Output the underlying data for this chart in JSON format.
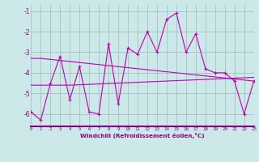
{
  "xlabel": "Windchill (Refroidissement éolien,°C)",
  "bg_color": "#cde8e8",
  "grid_color": "#99bbbb",
  "line_color": "#bb00aa",
  "x_ticks": [
    0,
    1,
    2,
    3,
    4,
    5,
    6,
    7,
    8,
    9,
    10,
    11,
    12,
    13,
    14,
    15,
    16,
    17,
    18,
    19,
    20,
    21,
    22,
    23
  ],
  "y_ticks": [
    -6,
    -5,
    -4,
    -3,
    -2,
    -1
  ],
  "xlim": [
    0,
    23
  ],
  "ylim": [
    -6.6,
    -0.7
  ],
  "series1_x": [
    0,
    1,
    2,
    3,
    4,
    5,
    6,
    7,
    8,
    9,
    10,
    11,
    12,
    13,
    14,
    15,
    16,
    17,
    18,
    19,
    20,
    21,
    22,
    23
  ],
  "series1_y": [
    -5.9,
    -6.3,
    -4.5,
    -3.2,
    -5.3,
    -3.7,
    -5.9,
    -6.0,
    -2.6,
    -5.5,
    -2.8,
    -3.1,
    -2.0,
    -3.0,
    -1.4,
    -1.1,
    -3.0,
    -2.1,
    -3.8,
    -4.0,
    -4.0,
    -4.4,
    -6.0,
    -4.4
  ],
  "series2_x": [
    0,
    1,
    2,
    3,
    4,
    5,
    6,
    7,
    8,
    9,
    10,
    11,
    12,
    13,
    14,
    15,
    16,
    17,
    18,
    19,
    20,
    21,
    22,
    23
  ],
  "series2_y": [
    -3.3,
    -3.3,
    -3.35,
    -3.4,
    -3.45,
    -3.5,
    -3.55,
    -3.6,
    -3.65,
    -3.7,
    -3.75,
    -3.8,
    -3.85,
    -3.9,
    -3.95,
    -4.0,
    -4.05,
    -4.1,
    -4.15,
    -4.2,
    -4.25,
    -4.3,
    -4.35,
    -4.4
  ],
  "series3_x": [
    0,
    1,
    2,
    3,
    4,
    5,
    6,
    7,
    8,
    9,
    10,
    11,
    12,
    13,
    14,
    15,
    16,
    17,
    18,
    19,
    20,
    21,
    22,
    23
  ],
  "series3_y": [
    -4.6,
    -4.6,
    -4.6,
    -4.6,
    -4.6,
    -4.58,
    -4.56,
    -4.54,
    -4.52,
    -4.5,
    -4.48,
    -4.46,
    -4.44,
    -4.42,
    -4.4,
    -4.38,
    -4.36,
    -4.34,
    -4.32,
    -4.3,
    -4.28,
    -4.26,
    -4.24,
    -4.22
  ]
}
